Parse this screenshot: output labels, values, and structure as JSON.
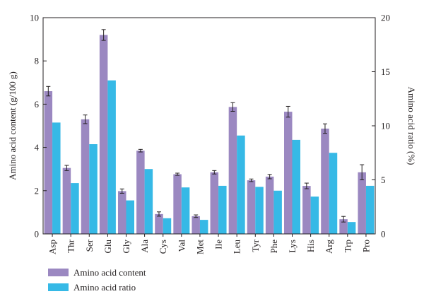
{
  "chart_data": {
    "type": "bar",
    "categories": [
      "Asp",
      "Thr",
      "Ser",
      "Glu",
      "Gly",
      "Ala",
      "Cys",
      "Val",
      "Met",
      "Ile",
      "Leu",
      "Tyr",
      "Phe",
      "Lys",
      "His",
      "Arg",
      "Trp",
      "Pro"
    ],
    "series": [
      {
        "name": "Amino acid content",
        "axis": "left",
        "color": "#9b88c1",
        "values": [
          6.6,
          3.05,
          5.3,
          9.2,
          1.98,
          3.85,
          0.92,
          2.76,
          0.82,
          2.85,
          5.87,
          2.48,
          2.65,
          5.65,
          2.22,
          4.87,
          0.68,
          2.85
        ],
        "errors": [
          0.22,
          0.12,
          0.2,
          0.25,
          0.1,
          0.06,
          0.1,
          0.05,
          0.06,
          0.08,
          0.2,
          0.06,
          0.1,
          0.25,
          0.13,
          0.22,
          0.13,
          0.35
        ]
      },
      {
        "name": "Amino acid ratio",
        "axis": "right",
        "color": "#36b9e6",
        "values": [
          10.3,
          4.7,
          8.3,
          14.2,
          3.1,
          6.0,
          1.45,
          4.3,
          1.3,
          4.45,
          9.1,
          4.35,
          4.0,
          8.7,
          3.45,
          7.5,
          1.1,
          4.45
        ]
      }
    ],
    "ylabel": "Amino acid content (g/100 g)",
    "ylabel_right": "Amino acid ratio (%)",
    "ylim": [
      0,
      10
    ],
    "ylim_right": [
      0,
      20
    ],
    "yticks": [
      0,
      2,
      4,
      6,
      8,
      10
    ],
    "yticks_right": [
      0,
      5,
      10,
      15,
      20
    ],
    "legend": "bottom-left",
    "grid": false
  }
}
